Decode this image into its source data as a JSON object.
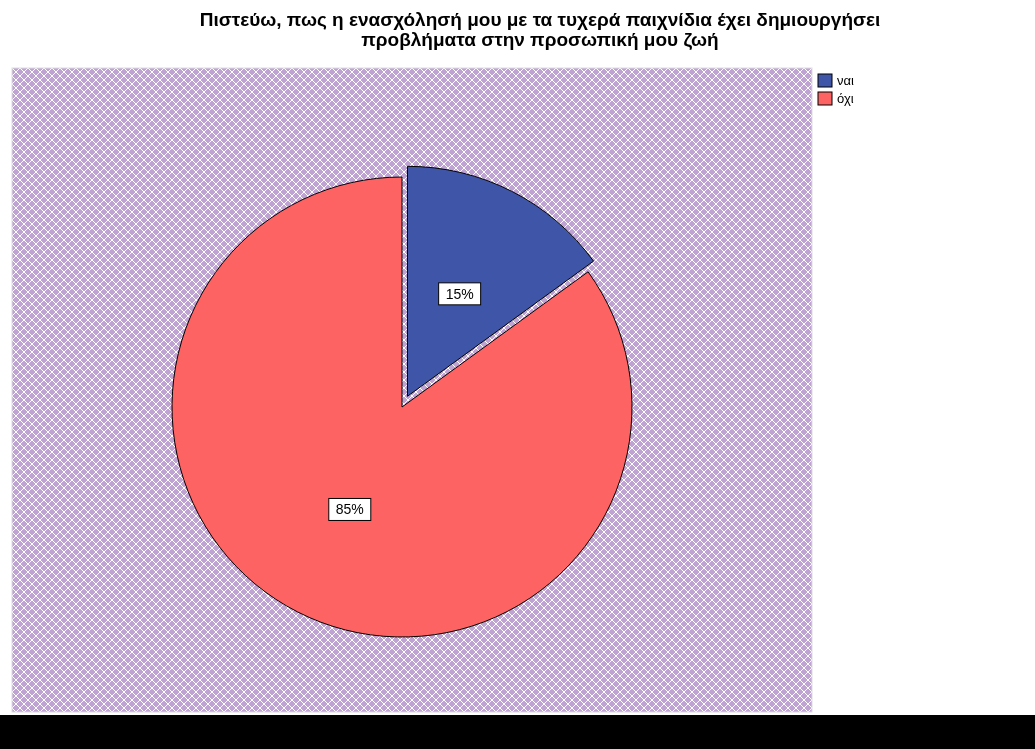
{
  "chart_data": {
    "type": "pie",
    "title": "Πιστεύω, πως η ενασχόλησή μου με τα τυχερά παιχνίδια έχει δημιουργήσει\nπροβλήματα στην προσωπική μου ζωή",
    "categories": [
      "ναι",
      "όχι"
    ],
    "values": [
      15,
      85
    ],
    "colors": [
      "#3f56a8",
      "#fd6363"
    ],
    "value_labels": [
      "15%",
      "85%"
    ],
    "legend": "top right"
  }
}
